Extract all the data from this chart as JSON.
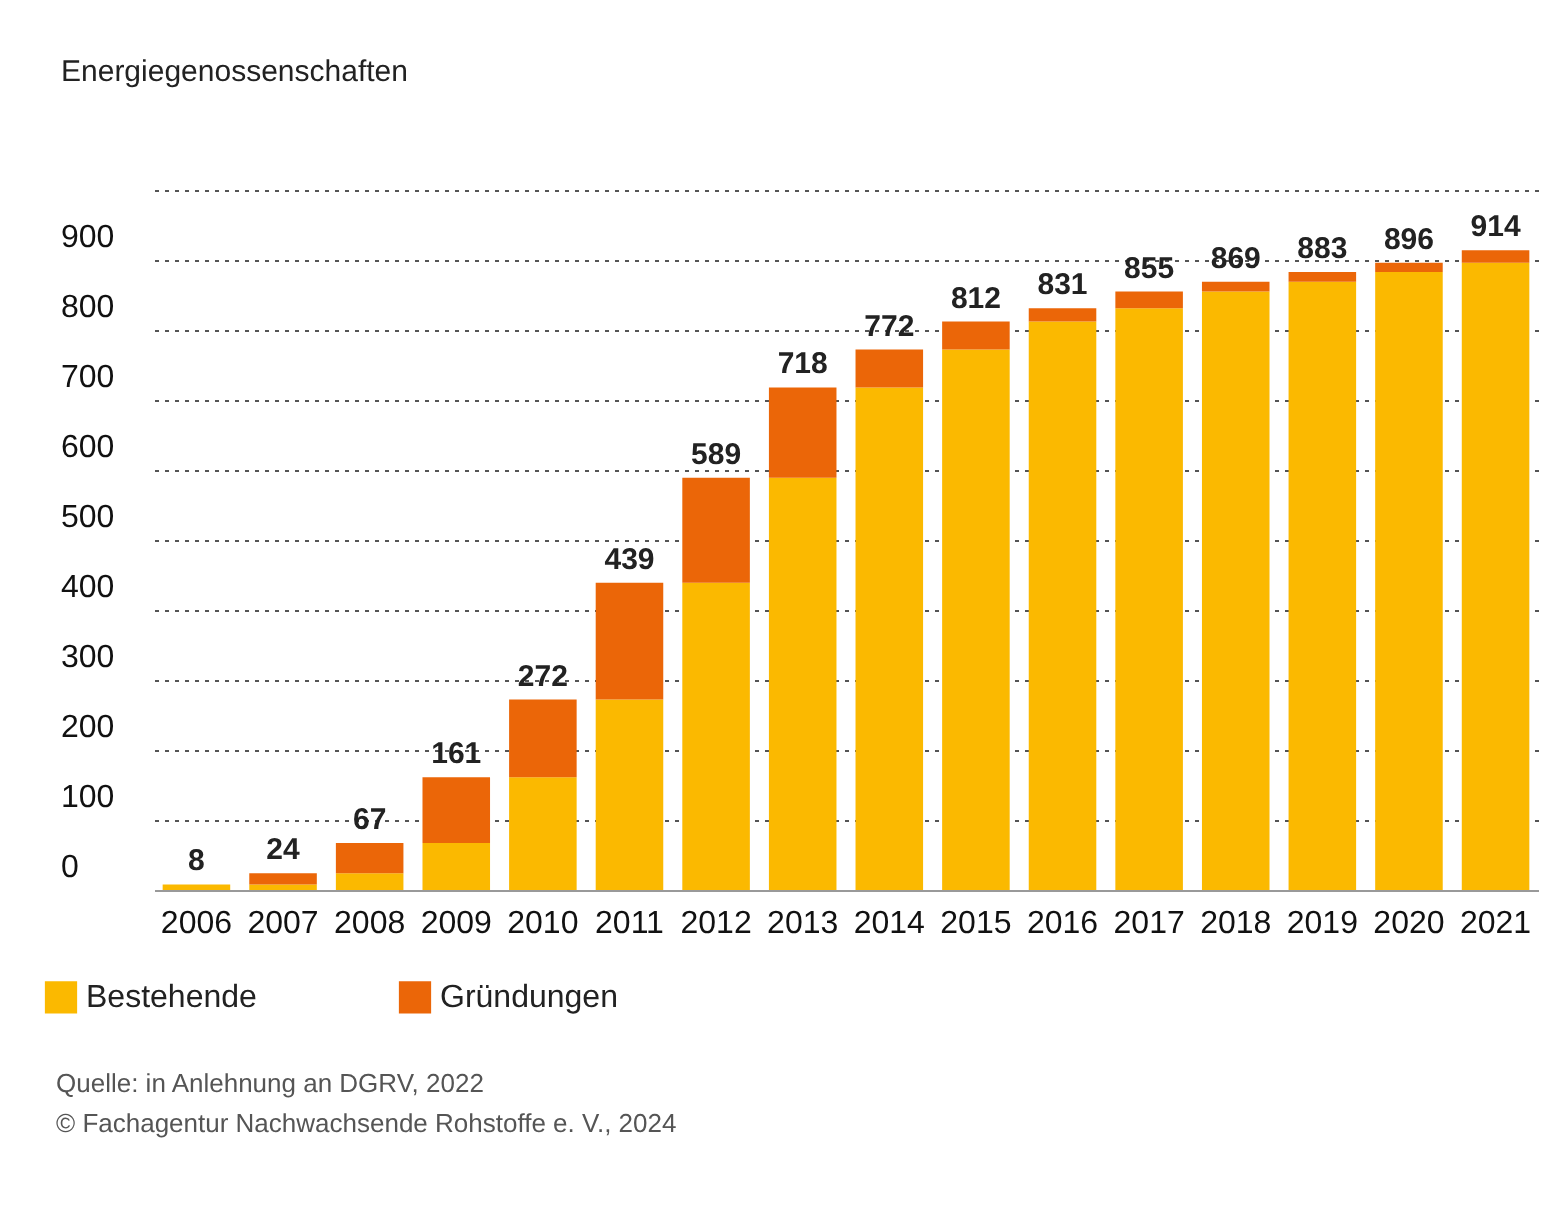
{
  "chart_data": {
    "type": "bar",
    "stacked": true,
    "ylabel": "Energiegenossenschaften",
    "categories": [
      "2006",
      "2007",
      "2008",
      "2009",
      "2010",
      "2011",
      "2012",
      "2013",
      "2014",
      "2015",
      "2016",
      "2017",
      "2018",
      "2019",
      "2020",
      "2021"
    ],
    "series": [
      {
        "name": "Bestehende",
        "color": "#fbb900",
        "values": [
          8,
          8,
          24,
          67,
          161,
          272,
          439,
          589,
          718,
          772,
          812,
          831,
          855,
          869,
          883,
          896
        ]
      },
      {
        "name": "Gründungen",
        "color": "#eb6608",
        "values": [
          0,
          16,
          43,
          94,
          111,
          167,
          150,
          129,
          54,
          40,
          19,
          24,
          14,
          14,
          13,
          18
        ]
      }
    ],
    "totals": [
      "8",
      "24",
      "67",
      "161",
      "272",
      "439",
      "589",
      "718",
      "772",
      "812",
      "831",
      "855",
      "869",
      "883",
      "896",
      "914"
    ],
    "ylim": [
      0,
      1000
    ],
    "yticks": [
      0,
      100,
      200,
      300,
      400,
      500,
      600,
      700,
      800,
      900,
      {
        "value": 1000,
        "label": null
      }
    ],
    "grid": "y",
    "legend": "bottom left",
    "annotations": [
      "Quelle: in Anlehnung an DGRV, 2022",
      "© Fachagentur Nachwachsende Rohstoffe e. V., 2024"
    ]
  }
}
